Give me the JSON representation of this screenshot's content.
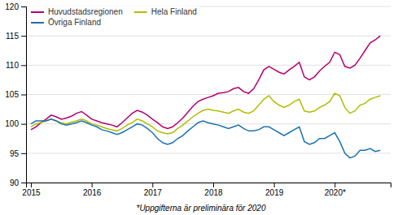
{
  "chart_data": {
    "type": "line",
    "x": [
      2015,
      2015.0833333333333,
      2015.1666666666667,
      2015.25,
      2015.3333333333333,
      2015.4166666666667,
      2015.5,
      2015.5833333333333,
      2015.6666666666667,
      2015.75,
      2015.8333333333333,
      2015.9166666666667,
      2016,
      2016.0833333333333,
      2016.1666666666667,
      2016.25,
      2016.3333333333333,
      2016.4166666666667,
      2016.5,
      2016.5833333333333,
      2016.6666666666667,
      2016.75,
      2016.8333333333333,
      2016.9166666666667,
      2017,
      2017.0833333333333,
      2017.1666666666667,
      2017.25,
      2017.3333333333333,
      2017.4166666666667,
      2017.5,
      2017.5833333333333,
      2017.6666666666667,
      2017.75,
      2017.8333333333333,
      2017.9166666666667,
      2018,
      2018.0833333333333,
      2018.1666666666667,
      2018.25,
      2018.3333333333333,
      2018.4166666666667,
      2018.5,
      2018.5833333333333,
      2018.6666666666667,
      2018.75,
      2018.8333333333333,
      2018.9166666666667,
      2019,
      2019.0833333333333,
      2019.1666666666667,
      2019.25,
      2019.3333333333333,
      2019.4166666666667,
      2019.5,
      2019.5833333333333,
      2019.6666666666667,
      2019.75,
      2019.8333333333333,
      2019.9166666666667,
      2020,
      2020.0833333333333,
      2020.1666666666667,
      2020.25,
      2020.3333333333333,
      2020.4166666666667,
      2020.5,
      2020.5833333333333,
      2020.6666666666667,
      2020.75
    ],
    "series": [
      {
        "name": "Huvudstadsregionen",
        "color": "#b5006e",
        "values": [
          99.0,
          99.5,
          100.2,
          100.8,
          101.5,
          101.2,
          100.8,
          101.0,
          101.3,
          101.8,
          102.1,
          101.5,
          100.8,
          100.5,
          100.2,
          100.0,
          99.8,
          99.5,
          100.2,
          101.0,
          101.8,
          102.3,
          102.0,
          101.5,
          100.8,
          100.2,
          99.5,
          99.2,
          99.5,
          100.2,
          101.0,
          102.0,
          103.0,
          103.8,
          104.2,
          104.5,
          104.8,
          105.2,
          105.3,
          105.5,
          106.0,
          106.2,
          105.5,
          105.2,
          106.0,
          107.5,
          109.2,
          109.8,
          109.3,
          108.8,
          108.5,
          109.2,
          109.8,
          110.5,
          108.0,
          107.5,
          108.0,
          109.0,
          109.8,
          110.5,
          112.2,
          111.8,
          109.8,
          109.5,
          110.0,
          111.2,
          112.5,
          113.8,
          114.3,
          115.0
        ]
      },
      {
        "name": "Hela Finland",
        "color": "#b0be00",
        "values": [
          99.5,
          100.0,
          100.2,
          100.5,
          100.8,
          100.5,
          100.2,
          100.0,
          100.3,
          100.5,
          100.8,
          100.5,
          100.0,
          99.8,
          99.5,
          99.2,
          99.0,
          98.8,
          99.2,
          99.8,
          100.2,
          100.8,
          100.5,
          100.0,
          99.5,
          98.8,
          98.5,
          98.3,
          98.5,
          99.2,
          99.8,
          100.5,
          101.2,
          101.8,
          102.3,
          102.5,
          102.3,
          102.2,
          102.0,
          101.8,
          102.2,
          102.5,
          102.0,
          101.8,
          102.2,
          103.2,
          104.2,
          104.8,
          103.8,
          103.2,
          102.8,
          103.2,
          103.8,
          104.2,
          102.2,
          102.0,
          102.2,
          102.8,
          103.2,
          103.8,
          105.2,
          104.8,
          102.8,
          101.8,
          102.2,
          103.2,
          103.5,
          104.2,
          104.5,
          104.8
        ]
      },
      {
        "name": "Övriga Finland",
        "color": "#1a72b0",
        "values": [
          100.0,
          100.5,
          100.5,
          100.5,
          100.8,
          100.5,
          100.0,
          99.8,
          100.0,
          100.2,
          100.5,
          100.2,
          99.8,
          99.5,
          99.0,
          98.8,
          98.5,
          98.2,
          98.5,
          99.0,
          99.5,
          100.0,
          99.8,
          99.2,
          98.5,
          97.5,
          96.8,
          96.5,
          96.8,
          97.5,
          98.0,
          98.8,
          99.5,
          100.2,
          100.5,
          100.2,
          100.0,
          99.8,
          99.5,
          99.2,
          99.5,
          99.8,
          99.2,
          98.8,
          98.8,
          99.0,
          99.5,
          99.5,
          99.0,
          98.5,
          98.0,
          98.5,
          99.0,
          99.5,
          97.0,
          96.5,
          96.8,
          97.5,
          97.5,
          98.0,
          98.5,
          97.0,
          95.0,
          94.2,
          94.5,
          95.5,
          95.5,
          95.8,
          95.3,
          95.5
        ]
      }
    ],
    "xlim": [
      2014.92,
      2020.92
    ],
    "xticks": [
      2015,
      2016,
      2017,
      2018,
      2019,
      {
        "value": 2020,
        "label": "2020*"
      }
    ],
    "ylim": [
      90,
      120
    ],
    "yticks": [
      90,
      95,
      100,
      105,
      110,
      115,
      120
    ],
    "grid": true,
    "legend": "upper left",
    "annotations": [
      "*Uppgifterna är preliminära för 2020"
    ]
  }
}
